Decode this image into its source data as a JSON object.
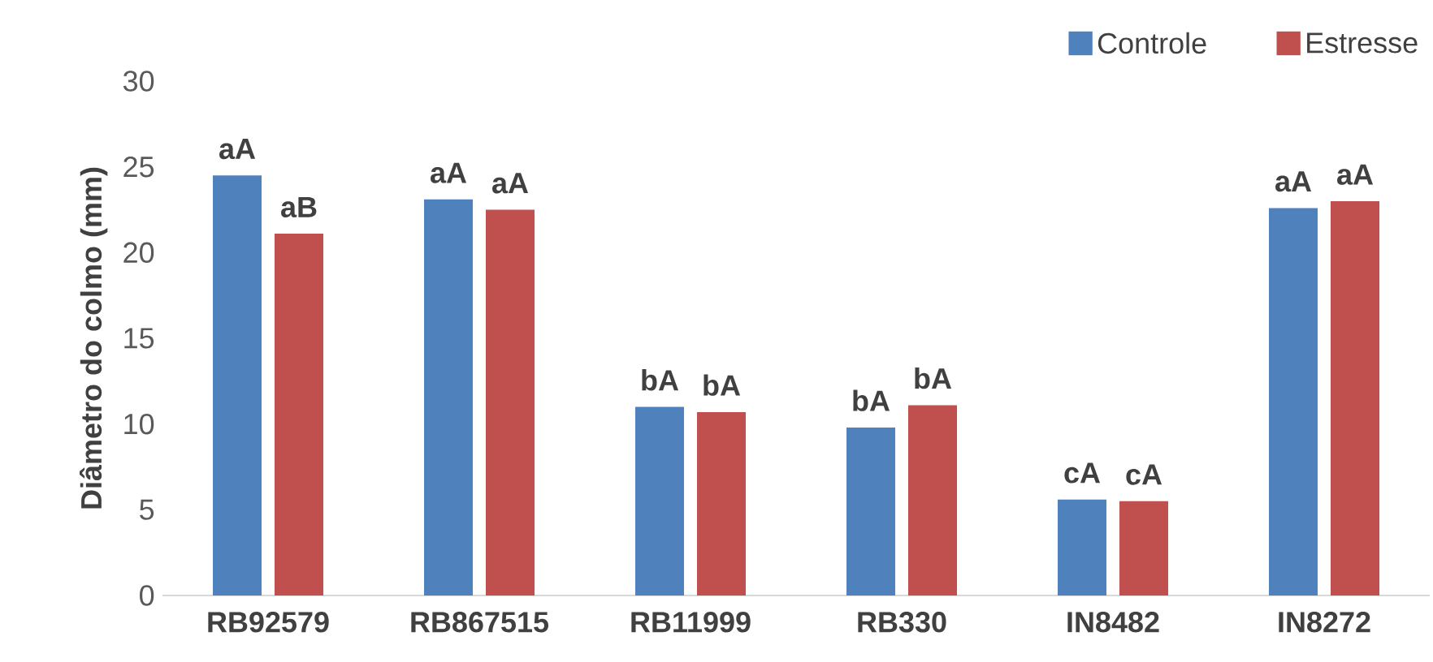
{
  "chart_data": {
    "type": "bar",
    "ylabel": "Diâmetro do colmo (mm)",
    "categories": [
      "RB92579",
      "RB867515",
      "RB11999",
      "RB330",
      "IN8482",
      "IN8272"
    ],
    "series": [
      {
        "name": "Controle",
        "color": "#4f81bd",
        "values": [
          24.5,
          23.1,
          11.0,
          9.8,
          5.6,
          22.6
        ],
        "value_labels": [
          "aA",
          "aA",
          "bA",
          "bA",
          "cA",
          "aA"
        ]
      },
      {
        "name": "Estresse",
        "color": "#c0504d",
        "values": [
          21.1,
          22.5,
          10.7,
          11.1,
          5.5,
          23.0
        ],
        "value_labels": [
          "aB",
          "aA",
          "bA",
          "bA",
          "cA",
          "aA"
        ]
      }
    ],
    "ylim": [
      0,
      30
    ],
    "yticks": [
      0,
      5,
      10,
      15,
      20,
      25,
      30
    ],
    "grid": false,
    "legend": "top right"
  }
}
